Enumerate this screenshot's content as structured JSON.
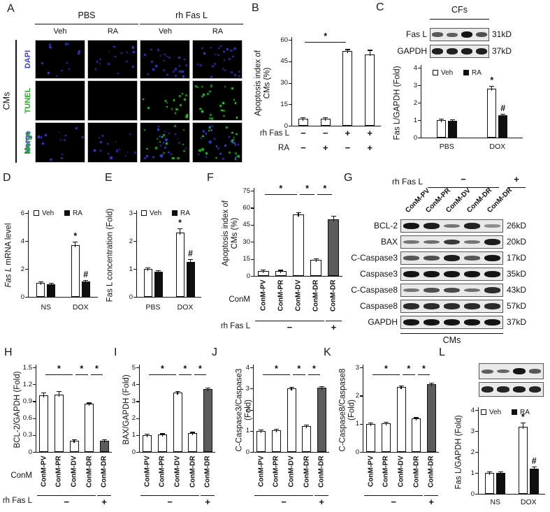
{
  "letters": [
    "A",
    "B",
    "C",
    "D",
    "E",
    "F",
    "G",
    "H",
    "I",
    "J",
    "K",
    "L"
  ],
  "panels": {
    "A": {
      "side_label": "CMs",
      "col_groups": [
        {
          "label": "PBS"
        },
        {
          "label": "rh Fas L"
        }
      ],
      "col_subs": [
        "Veh",
        "RA",
        "Veh",
        "RA"
      ],
      "rows": [
        {
          "label": "DAPI",
          "label_color": "#4343cf",
          "cells": [
            {
              "blue": 13
            },
            {
              "blue": 15
            },
            {
              "blue": 26
            },
            {
              "blue": 30
            }
          ]
        },
        {
          "label": "TUNEL",
          "label_color": "#2fae2f",
          "cells": [
            {},
            {},
            {
              "green": 17
            },
            {
              "green": 24
            }
          ]
        },
        {
          "label": "Merge",
          "label_color": "#2fae2f",
          "label_color2": "#4343cf",
          "cells": [
            {
              "blue": 13
            },
            {
              "blue": 15
            },
            {
              "blue": 22,
              "green": 15
            },
            {
              "blue": 26,
              "green": 18
            }
          ]
        }
      ]
    },
    "C_blot": {
      "title": "CFs",
      "rows": [
        {
          "label": "Fas L",
          "kd": "31kD",
          "bands": [
            0.55,
            0.5,
            1,
            0.6
          ]
        },
        {
          "label": "GAPDH",
          "kd": "37kD",
          "bands": [
            0.92,
            0.92,
            0.95,
            0.92
          ]
        }
      ]
    },
    "G_blot": {
      "treatment_label": "rh Fas L",
      "minus_sign": "−",
      "plus_sign": "+",
      "lanes": [
        "ConM-PV",
        "ConM-PR",
        "ConM-DV",
        "ConM-DR",
        "ConM-DR"
      ],
      "rows": [
        {
          "label": "BCL-2",
          "kd": "26kD",
          "bands": [
            1,
            0.95,
            0.35,
            0.9,
            0.18
          ]
        },
        {
          "label": "BAX",
          "kd": "20kD",
          "bands": [
            0.35,
            0.4,
            0.75,
            0.35,
            0.95
          ]
        },
        {
          "label": "C-Caspase3",
          "kd": "17kD",
          "bands": [
            0.55,
            0.6,
            0.95,
            0.55,
            1
          ]
        },
        {
          "label": "Caspase3",
          "kd": "35kD",
          "bands": [
            1,
            1,
            1,
            1,
            1
          ]
        },
        {
          "label": "C-Caspase8",
          "kd": "43kD",
          "bands": [
            0.35,
            0.6,
            0.65,
            0.4,
            0.85
          ]
        },
        {
          "label": "Caspase8",
          "kd": "57kD",
          "bands": [
            0.85,
            0.85,
            0.85,
            0.85,
            0.85
          ]
        },
        {
          "label": "GAPDH",
          "kd": "37kD",
          "bands": [
            1,
            1,
            1,
            1,
            1
          ]
        }
      ],
      "footer": "CMs"
    },
    "L_blot": {
      "strips": [
        [
          0.5,
          0.45,
          1,
          0.55
        ],
        [
          0.9,
          0.9,
          0.95,
          0.9
        ]
      ]
    }
  },
  "colors": {
    "bar_white": "#ffffff",
    "bar_black": "#0f0f0f",
    "bar_gray": "#5c5c5c",
    "axis": "#111111",
    "dapi_blue": "#4343cf",
    "tunel_green": "#3ad43a"
  },
  "chart_data": [
    {
      "panel": "B",
      "type": "bar",
      "ylabel": [
        "Apoptosis index of",
        "CMs (%)"
      ],
      "ylim": [
        0,
        60
      ],
      "yticks": [
        0,
        15,
        30,
        45,
        60
      ],
      "values": [
        5,
        5,
        52,
        50
      ],
      "errors": [
        0.8,
        0.8,
        1.5,
        3
      ],
      "fills": [
        "white",
        "white",
        "white",
        "white"
      ],
      "brackets": [
        {
          "from": 0,
          "to": 2,
          "label": "*"
        }
      ],
      "xrows": [
        {
          "label": "rh Fas L",
          "symbols": [
            "−",
            "−",
            "+",
            "+"
          ]
        },
        {
          "label": "RA",
          "symbols": [
            "−",
            "+",
            "−",
            "+"
          ]
        }
      ]
    },
    {
      "panel": "C",
      "type": "grouped",
      "ylabel": [
        "Fas L/GAPDH (Fold)"
      ],
      "ylim": [
        0,
        4
      ],
      "yticks": [
        0,
        1,
        2,
        3,
        4
      ],
      "legend": [
        {
          "label": "Veh",
          "fill": "white"
        },
        {
          "label": "RA",
          "fill": "black"
        }
      ],
      "series_fills": [
        "white",
        "black"
      ],
      "groups": [
        {
          "label": "PBS",
          "values": [
            1,
            0.97
          ],
          "errors": [
            0.05,
            0.05
          ],
          "marks": [
            "",
            ""
          ]
        },
        {
          "label": "DOX",
          "values": [
            2.8,
            1.3
          ],
          "errors": [
            0.15,
            0.08
          ],
          "marks": [
            "*",
            "#"
          ]
        }
      ]
    },
    {
      "panel": "D",
      "type": "grouped",
      "ylabel": [
        "Fas L mRNA level"
      ],
      "ylabel_italic": "Fas L",
      "ylim": [
        0,
        6
      ],
      "yticks": [
        0,
        2,
        4,
        6
      ],
      "legend": [
        {
          "label": "Veh",
          "fill": "white"
        },
        {
          "label": "RA",
          "fill": "black"
        }
      ],
      "series_fills": [
        "white",
        "black"
      ],
      "groups": [
        {
          "label": "NS",
          "values": [
            1,
            0.9
          ],
          "errors": [
            0.05,
            0.05
          ],
          "marks": [
            "",
            ""
          ]
        },
        {
          "label": "DOX",
          "values": [
            3.7,
            1.1
          ],
          "errors": [
            0.25,
            0.08
          ],
          "marks": [
            "*",
            "#"
          ]
        }
      ]
    },
    {
      "panel": "E",
      "type": "grouped",
      "ylabel": [
        "Fas L concentration (Fold)"
      ],
      "ylim": [
        0,
        3
      ],
      "yticks": [
        0,
        1,
        2,
        3
      ],
      "legend": [
        {
          "label": "Veh",
          "fill": "white"
        },
        {
          "label": "RA",
          "fill": "black"
        }
      ],
      "series_fills": [
        "white",
        "black"
      ],
      "groups": [
        {
          "label": "PBS",
          "values": [
            1,
            0.9
          ],
          "errors": [
            0.04,
            0.06
          ],
          "marks": [
            "",
            ""
          ]
        },
        {
          "label": "DOX",
          "values": [
            2.3,
            1.25
          ],
          "errors": [
            0.15,
            0.1
          ],
          "marks": [
            "*",
            "#"
          ]
        }
      ]
    },
    {
      "panel": "F",
      "type": "bar",
      "ylabel": [
        "Apoptosis index of",
        "CMs (%)"
      ],
      "ylim": [
        0,
        75
      ],
      "yticks": [
        0,
        15,
        30,
        45,
        60,
        75
      ],
      "values": [
        4.5,
        4,
        54,
        14,
        50
      ],
      "errors": [
        0.5,
        0.5,
        2,
        1,
        3
      ],
      "fills": [
        "white",
        "white",
        "white",
        "white",
        "gray"
      ],
      "xcats": [
        "ConM-PV",
        "ConM-PR",
        "ConM-DV",
        "ConM-DR",
        "ConM-DR"
      ],
      "brackets": [
        {
          "from": 0,
          "to": 2,
          "label": "*"
        },
        {
          "from": 2,
          "to": 3,
          "label": "*"
        },
        {
          "from": 3,
          "to": 4,
          "label": "*"
        }
      ],
      "bottom": {
        "left_label": "ConM",
        "row_label": "rh Fas L",
        "signs": [
          {
            "from": 0,
            "to": 3,
            "sign": "−"
          },
          {
            "from": 4,
            "to": 4,
            "sign": "+"
          }
        ]
      }
    },
    {
      "panel": "H",
      "type": "bar",
      "ylabel": [
        "BCL-2/GAPDH (Fold)"
      ],
      "ylim": [
        0,
        1.5
      ],
      "yticks": [
        0,
        0.3,
        0.6,
        0.9,
        1.2,
        1.5
      ],
      "values": [
        1,
        1.02,
        0.2,
        0.85,
        0.2
      ],
      "errors": [
        0.05,
        0.06,
        0.015,
        0.02,
        0.015
      ],
      "fills": [
        "white",
        "white",
        "white",
        "white",
        "gray"
      ],
      "xcats": [
        "ConM-PV",
        "ConM-PR",
        "ConM-DV",
        "ConM-DR",
        "ConM-DR"
      ],
      "brackets": [
        {
          "from": 0,
          "to": 2,
          "label": "*"
        },
        {
          "from": 2,
          "to": 3,
          "label": "*"
        },
        {
          "from": 3,
          "to": 4,
          "label": "*"
        }
      ],
      "bottom": {
        "left_label": "ConM",
        "row_label": "rh Fas L",
        "signs": [
          {
            "from": 0,
            "to": 3,
            "sign": "−"
          },
          {
            "from": 4,
            "to": 4,
            "sign": "+"
          }
        ]
      }
    },
    {
      "panel": "I",
      "type": "bar",
      "ylabel": [
        "BAX/GAPDH (Fold)"
      ],
      "ylim": [
        0,
        5
      ],
      "yticks": [
        0,
        1,
        2,
        3,
        4,
        5
      ],
      "values": [
        1,
        1.02,
        3.5,
        1.1,
        3.7
      ],
      "errors": [
        0.04,
        0.05,
        0.08,
        0.05,
        0.1
      ],
      "fills": [
        "white",
        "white",
        "white",
        "white",
        "gray"
      ],
      "xcats": [
        "ConM-PV",
        "ConM-PR",
        "ConM-DV",
        "ConM-DR",
        "ConM-DR"
      ],
      "brackets": [
        {
          "from": 0,
          "to": 2,
          "label": "*"
        },
        {
          "from": 2,
          "to": 3,
          "label": "*"
        },
        {
          "from": 3,
          "to": 4,
          "label": "*"
        }
      ],
      "bottom": {
        "left_label": null,
        "row_label": null,
        "signs": [
          {
            "from": 0,
            "to": 3,
            "sign": "−"
          },
          {
            "from": 4,
            "to": 4,
            "sign": "+"
          }
        ]
      }
    },
    {
      "panel": "J",
      "type": "bar",
      "ylabel": [
        "C-Caspase3/Caspase3",
        "(Fold)"
      ],
      "ylim": [
        0,
        4
      ],
      "yticks": [
        0,
        1,
        2,
        3,
        4
      ],
      "values": [
        1,
        1.02,
        3,
        1.22,
        3.05
      ],
      "errors": [
        0.04,
        0.05,
        0.05,
        0.04,
        0.06
      ],
      "fills": [
        "white",
        "white",
        "white",
        "white",
        "gray"
      ],
      "xcats": [
        "ConM-PV",
        "ConM-PR",
        "ConM-DV",
        "ConM-DR",
        "ConM-DR"
      ],
      "brackets": [
        {
          "from": 0,
          "to": 2,
          "label": "*"
        },
        {
          "from": 2,
          "to": 3,
          "label": "*"
        },
        {
          "from": 3,
          "to": 4,
          "label": "*"
        }
      ],
      "bottom": {
        "left_label": null,
        "row_label": null,
        "signs": [
          {
            "from": 0,
            "to": 3,
            "sign": "−"
          },
          {
            "from": 4,
            "to": 4,
            "sign": "+"
          }
        ]
      }
    },
    {
      "panel": "K",
      "type": "bar",
      "ylabel": [
        "C-Caspase8/Caspase8",
        "(Fold)"
      ],
      "ylim": [
        0,
        3
      ],
      "yticks": [
        0,
        1,
        2,
        3
      ],
      "values": [
        1,
        1.02,
        2.3,
        1.18,
        2.4
      ],
      "errors": [
        0.03,
        0.04,
        0.05,
        0.03,
        0.05
      ],
      "fills": [
        "white",
        "white",
        "white",
        "white",
        "gray"
      ],
      "xcats": [
        "ConM-PV",
        "ConM-PR",
        "ConM-DV",
        "ConM-DR",
        "ConM-DR"
      ],
      "brackets": [
        {
          "from": 0,
          "to": 2,
          "label": "*"
        },
        {
          "from": 2,
          "to": 3,
          "label": "*"
        },
        {
          "from": 3,
          "to": 4,
          "label": "*"
        }
      ],
      "bottom": {
        "left_label": null,
        "row_label": null,
        "signs": [
          {
            "from": 0,
            "to": 3,
            "sign": "−"
          },
          {
            "from": 4,
            "to": 4,
            "sign": "+"
          }
        ]
      }
    },
    {
      "panel": "L",
      "type": "grouped",
      "ylabel": [
        "Fas L/GAPDH (Fold)"
      ],
      "ylim": [
        0,
        4
      ],
      "yticks": [
        0,
        1,
        2,
        3,
        4
      ],
      "legend": [
        {
          "label": "Veh",
          "fill": "white"
        },
        {
          "label": "RA",
          "fill": "black"
        }
      ],
      "series_fills": [
        "white",
        "black"
      ],
      "groups": [
        {
          "label": "NS",
          "values": [
            1,
            1
          ],
          "errors": [
            0.07,
            0.07
          ],
          "marks": [
            "",
            ""
          ]
        },
        {
          "label": "DOX",
          "values": [
            3.2,
            1.2
          ],
          "errors": [
            0.2,
            0.1
          ],
          "marks": [
            "*",
            "#"
          ]
        }
      ]
    }
  ]
}
